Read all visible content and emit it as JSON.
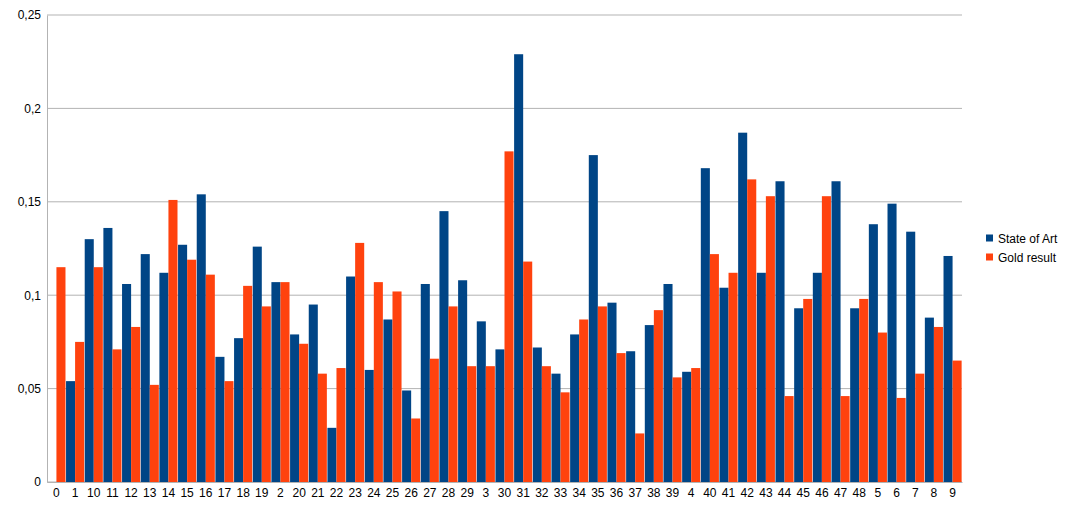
{
  "chart_data": {
    "type": "bar",
    "categories": [
      "0",
      "1",
      "10",
      "11",
      "12",
      "13",
      "14",
      "15",
      "16",
      "17",
      "18",
      "19",
      "2",
      "20",
      "21",
      "22",
      "23",
      "24",
      "25",
      "26",
      "27",
      "28",
      "29",
      "3",
      "30",
      "31",
      "32",
      "33",
      "34",
      "35",
      "36",
      "37",
      "38",
      "39",
      "4",
      "40",
      "41",
      "42",
      "43",
      "44",
      "45",
      "46",
      "47",
      "48",
      "5",
      "6",
      "7",
      "8",
      "9"
    ],
    "series": [
      {
        "name": "State of Art",
        "color": "#004586",
        "values": [
          0,
          0.054,
          0.13,
          0.136,
          0.106,
          0.122,
          0.112,
          0.127,
          0.154,
          0.067,
          0.077,
          0.126,
          0.107,
          0.079,
          0.095,
          0.029,
          0.11,
          0.06,
          0.087,
          0.049,
          0.106,
          0.145,
          0.108,
          0.086,
          0.071,
          0.229,
          0.072,
          0.058,
          0.079,
          0.175,
          0.096,
          0.07,
          0.084,
          0.106,
          0.059,
          0.168,
          0.104,
          0.187,
          0.112,
          0.161,
          0.093,
          0.112,
          0.161,
          0.093,
          0.138,
          0.149,
          0.134,
          0.088,
          0.121
        ]
      },
      {
        "name": "Gold result",
        "color": "#ff420e",
        "values": [
          0.115,
          0.075,
          0.115,
          0.071,
          0.083,
          0.052,
          0.151,
          0.119,
          0.111,
          0.054,
          0.105,
          0.094,
          0.107,
          0.074,
          0.058,
          0.061,
          0.128,
          0.107,
          0.102,
          0.034,
          0.066,
          0.094,
          0.062,
          0.062,
          0.177,
          0.118,
          0.062,
          0.048,
          0.087,
          0.094,
          0.069,
          0.026,
          0.092,
          0.056,
          0.061,
          0.122,
          0.112,
          0.162,
          0.153,
          0.046,
          0.098,
          0.153,
          0.046,
          0.098,
          0.08,
          0.045,
          0.058,
          0.083,
          0.065
        ]
      }
    ],
    "ylim": [
      0,
      0.25
    ],
    "yticks": [
      0,
      {
        "value": 0.05,
        "label": "0,05"
      },
      {
        "value": 0.1,
        "label": "0,1"
      },
      {
        "value": 0.15,
        "label": "0,15"
      },
      {
        "value": 0.2,
        "label": "0,2"
      },
      {
        "value": 0.25,
        "label": "0,25"
      }
    ],
    "grid": true,
    "legend": "right"
  }
}
